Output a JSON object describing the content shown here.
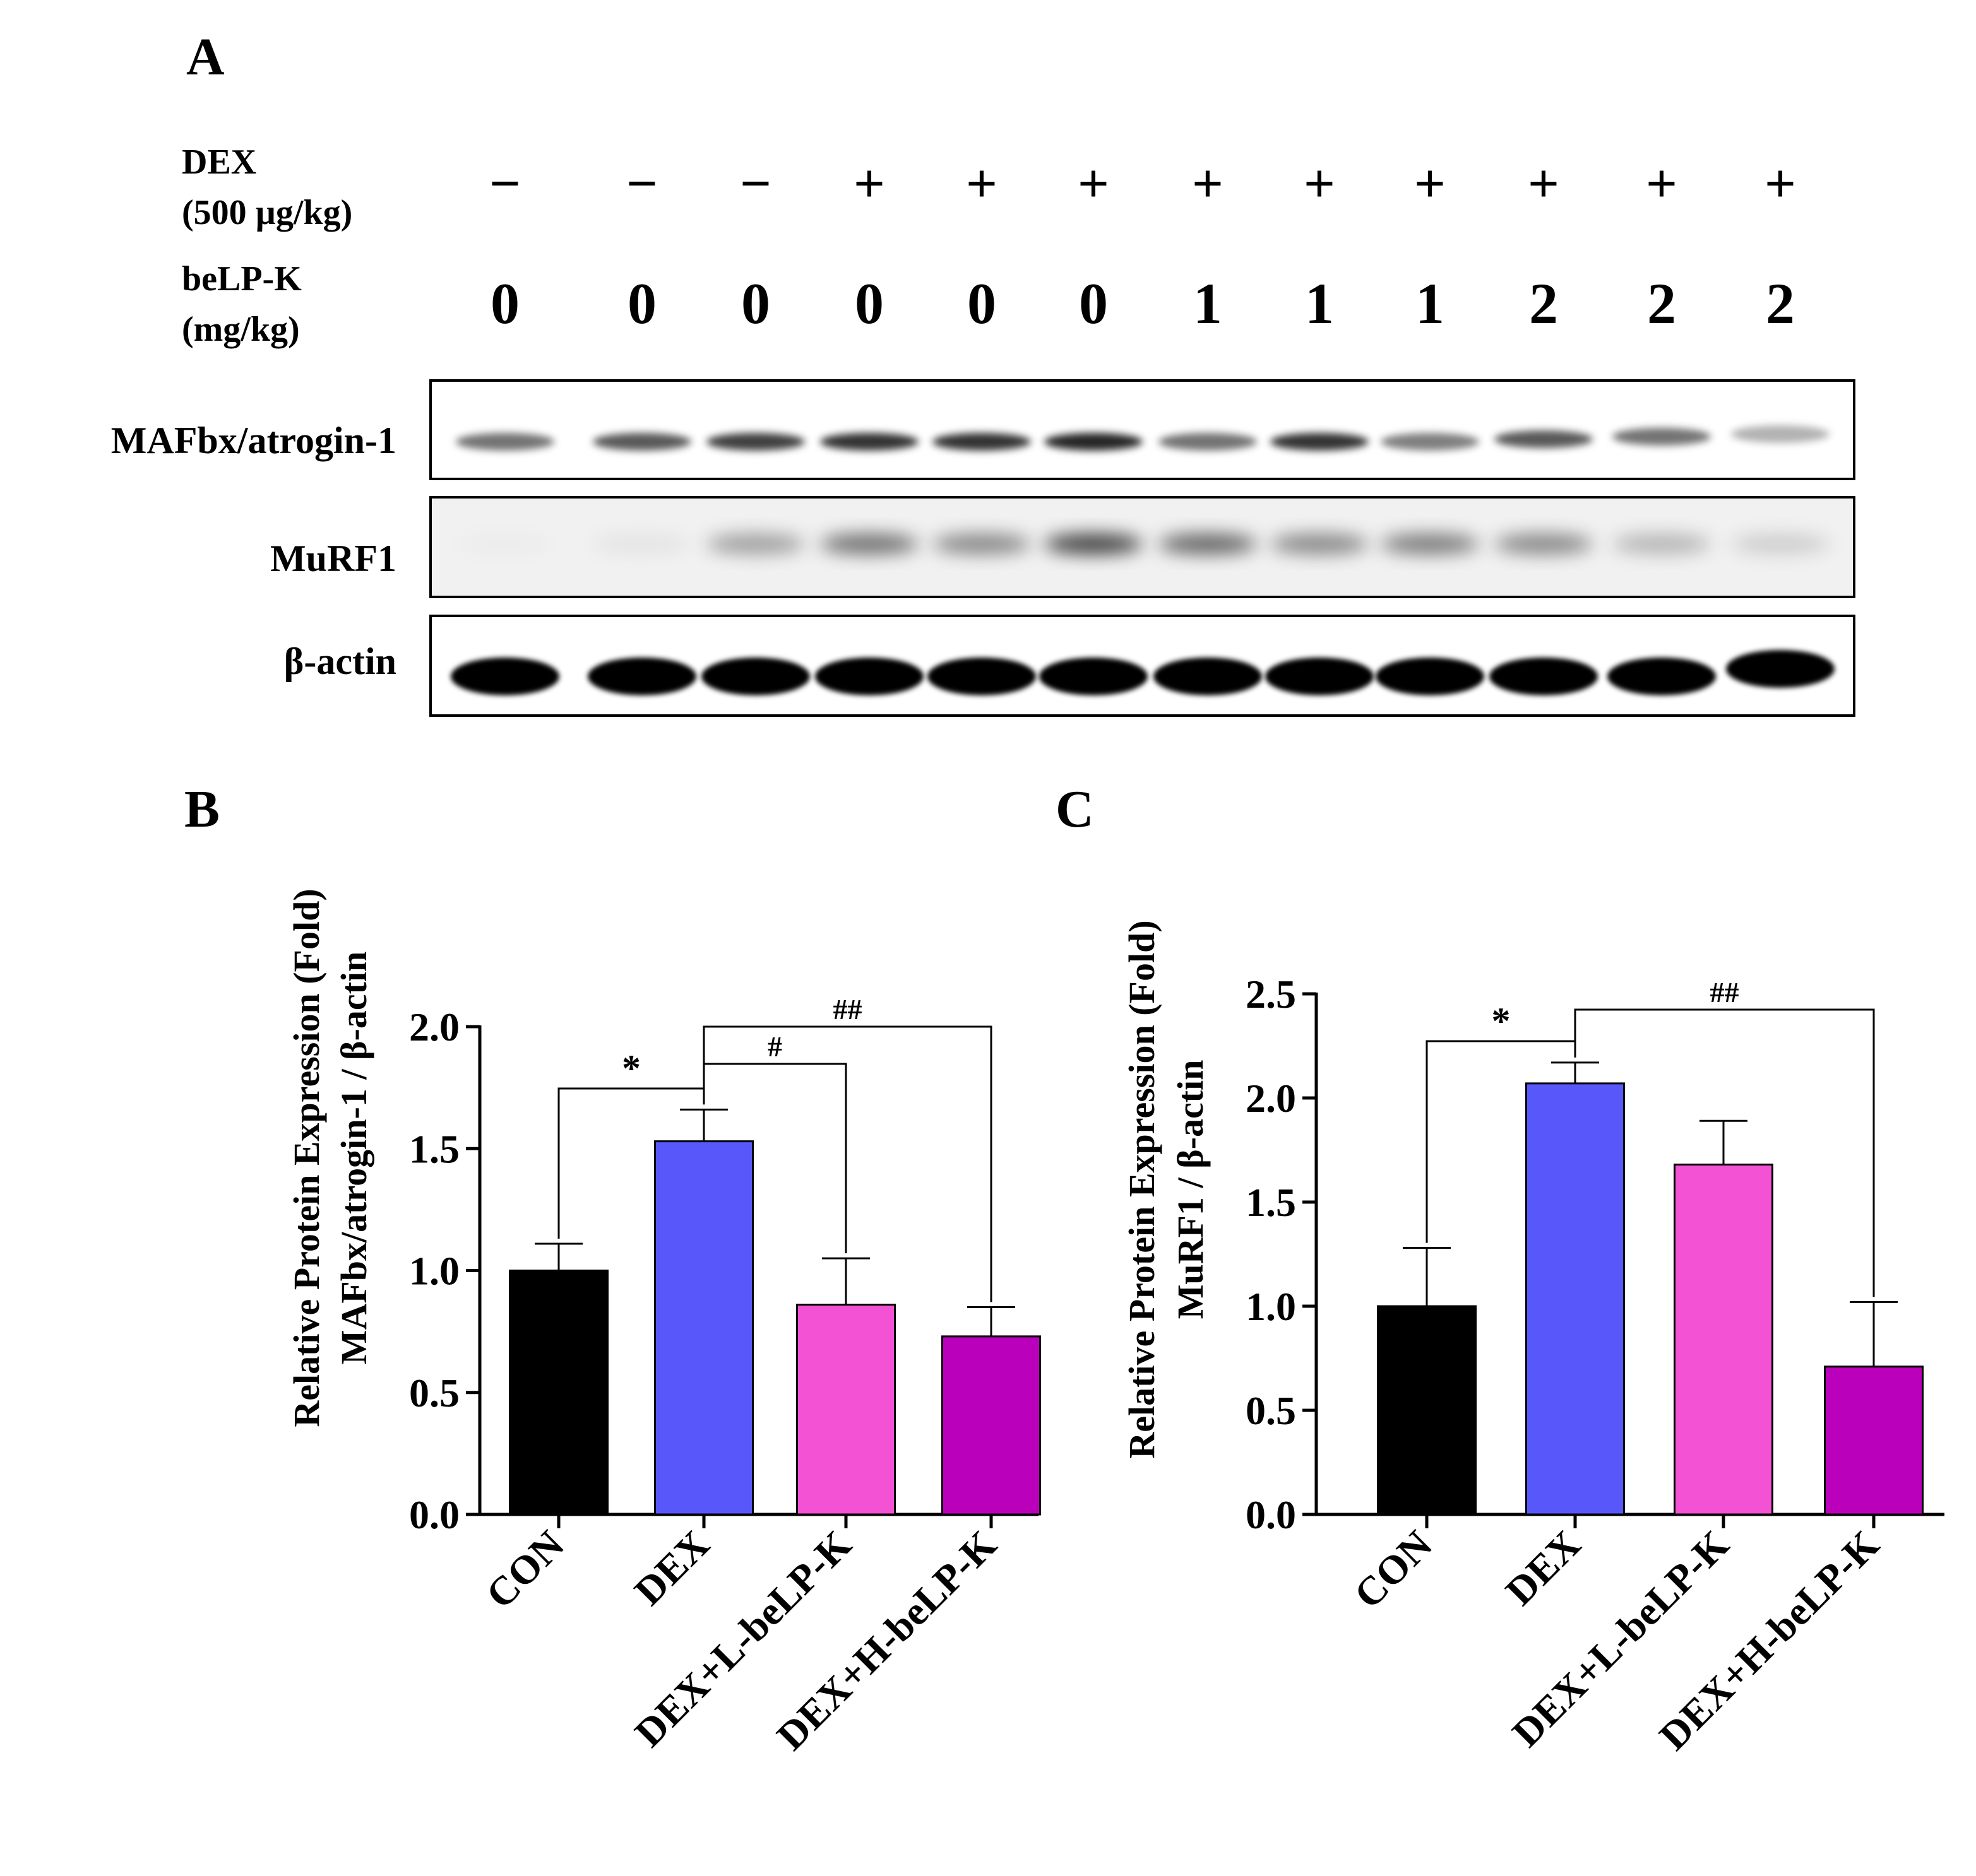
{
  "panels": {
    "a": "A",
    "b": "B",
    "c": "C"
  },
  "blot": {
    "treatment_rows": [
      {
        "label_lines": [
          "DEX",
          "(500 µg/kg)"
        ],
        "values": [
          "−",
          "−",
          "−",
          "+",
          "+",
          "+",
          "+",
          "+",
          "+",
          "+",
          "+",
          "+"
        ]
      },
      {
        "label_lines": [
          "beLP-K",
          "(mg/kg)"
        ],
        "values": [
          "0",
          "0",
          "0",
          "0",
          "0",
          "0",
          "1",
          "1",
          "1",
          "2",
          "2",
          "2"
        ]
      }
    ],
    "bands": [
      {
        "label": "MAFbx/atrogin-1",
        "intensity": [
          0.55,
          0.65,
          0.75,
          0.8,
          0.8,
          0.85,
          0.55,
          0.8,
          0.5,
          0.65,
          0.55,
          0.3
        ]
      },
      {
        "label": "MuRF1",
        "intensity": [
          0.0,
          0.05,
          0.35,
          0.55,
          0.45,
          0.75,
          0.6,
          0.45,
          0.5,
          0.45,
          0.25,
          0.15
        ]
      },
      {
        "label": "β-actin",
        "intensity": [
          1,
          1,
          1,
          1,
          1,
          1,
          1,
          1,
          1,
          1,
          1,
          1
        ]
      }
    ]
  },
  "chart_data": [
    {
      "type": "bar",
      "panel": "B",
      "ylabel_lines": [
        "Relative Protein Expression (Fold)",
        "MAFbx/atrogin-1 / β-actin"
      ],
      "categories": [
        "CON",
        "DEX",
        "DEX+L-beLP-K",
        "DEX+H-beLP-K"
      ],
      "values": [
        1.0,
        1.53,
        0.86,
        0.73
      ],
      "errors": [
        0.11,
        0.13,
        0.19,
        0.12
      ],
      "colors": [
        "#000000",
        "#5858fa",
        "#f452d4",
        "#bb00bb"
      ],
      "ylim": [
        0,
        2.0
      ],
      "yticks": [
        "0.0",
        "0.5",
        "1.0",
        "1.5",
        "2.0"
      ],
      "significance": [
        {
          "from": 0,
          "to": 1,
          "label": "*"
        },
        {
          "from": 1,
          "to": 2,
          "label": "#"
        },
        {
          "from": 1,
          "to": 3,
          "label": "##"
        }
      ]
    },
    {
      "type": "bar",
      "panel": "C",
      "ylabel_lines": [
        "Relative Protein Expression (Fold)",
        "MuRF1 / β-actin"
      ],
      "categories": [
        "CON",
        "DEX",
        "DEX+L-beLP-K",
        "DEX+H-beLP-K"
      ],
      "values": [
        1.0,
        2.07,
        1.68,
        0.71
      ],
      "errors": [
        0.28,
        0.1,
        0.21,
        0.31
      ],
      "colors": [
        "#000000",
        "#5858fa",
        "#f452d4",
        "#bb00bb"
      ],
      "ylim": [
        0,
        2.5
      ],
      "yticks": [
        "0.0",
        "0.5",
        "1.0",
        "1.5",
        "2.0",
        "2.5"
      ],
      "significance": [
        {
          "from": 0,
          "to": 1,
          "label": "*"
        },
        {
          "from": 1,
          "to": 3,
          "label": "##"
        }
      ]
    }
  ]
}
